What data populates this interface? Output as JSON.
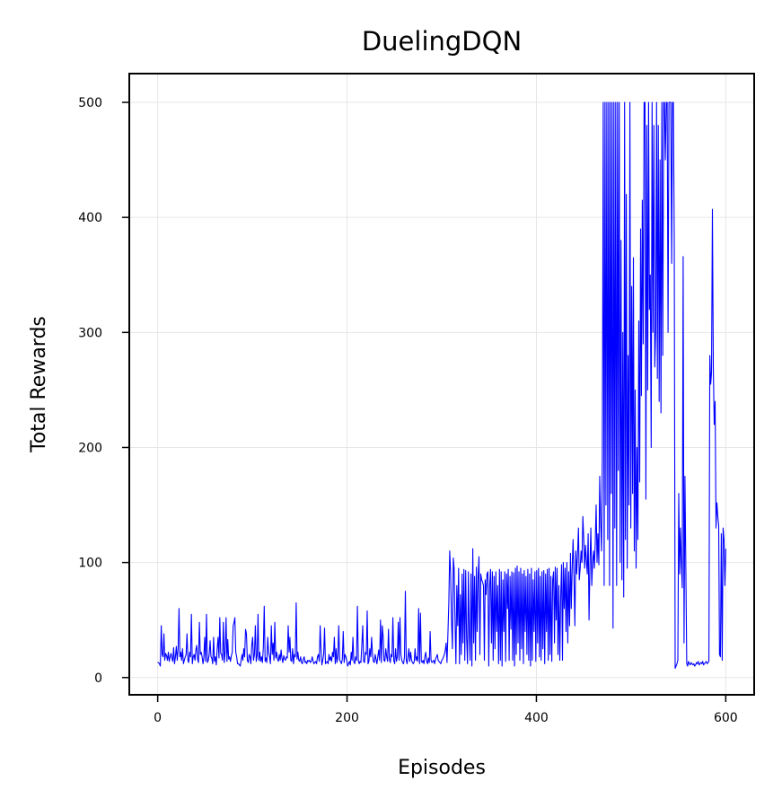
{
  "chart_data": {
    "type": "line",
    "title": "DuelingDQN",
    "xlabel": "Episodes",
    "ylabel": "Total Rewards",
    "xlim": [
      -30,
      630
    ],
    "ylim": [
      -15,
      525
    ],
    "xticks": [
      0,
      200,
      400,
      600
    ],
    "yticks": [
      0,
      100,
      200,
      300,
      400,
      500
    ],
    "xtick_labels": [
      "0",
      "200",
      "400",
      "600"
    ],
    "ytick_labels": [
      "0",
      "100",
      "200",
      "300",
      "400",
      "500"
    ],
    "grid": true,
    "line_color": "#0000ff",
    "y": [
      13,
      13,
      12,
      10,
      45,
      20,
      18,
      38,
      15,
      21,
      19,
      15,
      22,
      14,
      18,
      21,
      17,
      14,
      26,
      12,
      18,
      27,
      15,
      25,
      60,
      18,
      22,
      15,
      25,
      12,
      15,
      18,
      20,
      38,
      15,
      13,
      22,
      18,
      55,
      12,
      18,
      20,
      15,
      24,
      28,
      16,
      13,
      48,
      20,
      22,
      18,
      12,
      17,
      35,
      14,
      55,
      13,
      15,
      20,
      32,
      18,
      17,
      12,
      35,
      14,
      18,
      11,
      25,
      35,
      17,
      52,
      21,
      20,
      15,
      48,
      13,
      22,
      52,
      14,
      33,
      16,
      18,
      14,
      19,
      22,
      45,
      48,
      52,
      22,
      18,
      12,
      12,
      11,
      10,
      15,
      20,
      15,
      25,
      18,
      42,
      38,
      15,
      13,
      20,
      18,
      12,
      28,
      35,
      15,
      20,
      45,
      14,
      19,
      55,
      15,
      22,
      14,
      18,
      13,
      26,
      62,
      14,
      17,
      13,
      35,
      22,
      18,
      12,
      45,
      20,
      30,
      15,
      48,
      17,
      22,
      16,
      14,
      20,
      15,
      24,
      17,
      13,
      19,
      16,
      15,
      18,
      17,
      45,
      22,
      35,
      15,
      14,
      25,
      12,
      20,
      18,
      65,
      16,
      22,
      15,
      14,
      18,
      13,
      12,
      16,
      18,
      13,
      14,
      12,
      15,
      14,
      15,
      13,
      14,
      18,
      15,
      12,
      13,
      14,
      12,
      18,
      20,
      14,
      45,
      25,
      11,
      15,
      20,
      43,
      12,
      13,
      14,
      12,
      20,
      15,
      18,
      14,
      22,
      18,
      35,
      12,
      25,
      13,
      18,
      45,
      15,
      14,
      12,
      16,
      40,
      13,
      20,
      18,
      15,
      10,
      12,
      14,
      11,
      22,
      15,
      35,
      14,
      12,
      18,
      15,
      62,
      15,
      12,
      14,
      13,
      28,
      45,
      14,
      13,
      22,
      20,
      58,
      12,
      14,
      25,
      18,
      35,
      20,
      14,
      13,
      20,
      16,
      12,
      18,
      24,
      15,
      50,
      13,
      45,
      35,
      15,
      14,
      25,
      18,
      14,
      42,
      16,
      13,
      20,
      18,
      52,
      15,
      12,
      25,
      14,
      18,
      48,
      15,
      52,
      20,
      15,
      13,
      12,
      18,
      75,
      15,
      12,
      18,
      25,
      14,
      22,
      15,
      13,
      12,
      14,
      25,
      15,
      18,
      14,
      60,
      12,
      56,
      14,
      13,
      15,
      12,
      18,
      22,
      14,
      12,
      17,
      13,
      40,
      15,
      13,
      14,
      15,
      12,
      16,
      18,
      20,
      15,
      14,
      13,
      12,
      15,
      16,
      18,
      20,
      24,
      30,
      13,
      38,
      65,
      110,
      90,
      50,
      25,
      104,
      95,
      50,
      12,
      80,
      45,
      95,
      12,
      72,
      20,
      90,
      30,
      94,
      15,
      93,
      35,
      12,
      92,
      40,
      15,
      90,
      10,
      112,
      30,
      88,
      15,
      96,
      40,
      88,
      105,
      20,
      90,
      85,
      83,
      80,
      15,
      85,
      72,
      90,
      92,
      10,
      80,
      94,
      30,
      92,
      15,
      88,
      25,
      92,
      40,
      80,
      12,
      94,
      15,
      92,
      10,
      85,
      40,
      92,
      14,
      90,
      60,
      94,
      15,
      88,
      42,
      92,
      15,
      91,
      10,
      95,
      20,
      97,
      30,
      92,
      15,
      95,
      25,
      90,
      12,
      93,
      40,
      88,
      20,
      94,
      15,
      90,
      10,
      95,
      15,
      85,
      40,
      92,
      14,
      93,
      30,
      95,
      18,
      88,
      15,
      92,
      25,
      93,
      12,
      90,
      40,
      94,
      15,
      95,
      20,
      88,
      14,
      85,
      92,
      30,
      96,
      50,
      95,
      20,
      80,
      15,
      70,
      98,
      15,
      100,
      60,
      95,
      40,
      100,
      30,
      92,
      45,
      108,
      60,
      95,
      120,
      88,
      45,
      110,
      90,
      108,
      130,
      85,
      95,
      110,
      100,
      140,
      120,
      95,
      115,
      102,
      90,
      125,
      50,
      98,
      130,
      80,
      100,
      110,
      95,
      118,
      150,
      100,
      125,
      98,
      175,
      135,
      110,
      192,
      500,
      80,
      500,
      150,
      500,
      120,
      500,
      80,
      500,
      160,
      500,
      43,
      500,
      130,
      500,
      80,
      500,
      180,
      500,
      100,
      380,
      85,
      300,
      70,
      500,
      120,
      420,
      95,
      280,
      150,
      500,
      130,
      340,
      160,
      365,
      110,
      250,
      95,
      200,
      120,
      310,
      170,
      390,
      245,
      415,
      290,
      500,
      500,
      155,
      480,
      250,
      500,
      320,
      350,
      200,
      500,
      300,
      480,
      270,
      300,
      500,
      260,
      480,
      240,
      450,
      230,
      500,
      280,
      500,
      500,
      450,
      500,
      500,
      300,
      500,
      500,
      500,
      360,
      500,
      500,
      380,
      8,
      10,
      12,
      15,
      160,
      90,
      130,
      100,
      78,
      366,
      30,
      175,
      95,
      12,
      10,
      14,
      12,
      11,
      13,
      12,
      11,
      12,
      10,
      11,
      13,
      12,
      14,
      11,
      12,
      13,
      12,
      14,
      11,
      12,
      13,
      14,
      12,
      13,
      14,
      280,
      255,
      265,
      407,
      270,
      220,
      240,
      130,
      152,
      140,
      132,
      20,
      18,
      125,
      15,
      130,
      120,
      80,
      112
    ]
  }
}
